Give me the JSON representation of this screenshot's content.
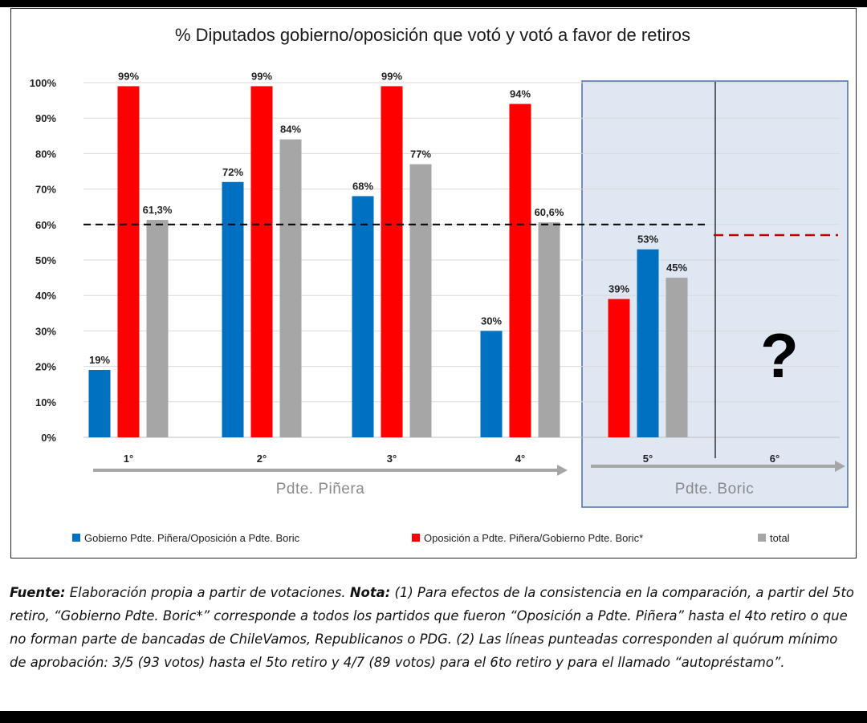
{
  "chart_data": {
    "type": "bar",
    "title": "% Diputados gobierno/oposición que votó y votó a favor de retiros",
    "categories": [
      "1°",
      "2°",
      "3°",
      "4°",
      "5°",
      "6°"
    ],
    "ylim": [
      0,
      100
    ],
    "y_ticks": [
      "0%",
      "10%",
      "20%",
      "30%",
      "40%",
      "50%",
      "60%",
      "70%",
      "80%",
      "90%",
      "100%"
    ],
    "grid": true,
    "legend_position": "bottom",
    "series": [
      {
        "name": "Gobierno Pdte. Piñera/Oposición a Pdte. Boric",
        "color": "#0070c0",
        "values": [
          19,
          72,
          68,
          30,
          53,
          null
        ],
        "labels": [
          "19%",
          "72%",
          "68%",
          "30%",
          "53%",
          ""
        ]
      },
      {
        "name": "Oposición a Pdte. Piñera/Gobierno Pdte. Boric*",
        "color": "#ff0000",
        "values": [
          99,
          99,
          99,
          94,
          39,
          null
        ],
        "labels": [
          "99%",
          "99%",
          "99%",
          "94%",
          "39%",
          ""
        ]
      },
      {
        "name": "total",
        "color": "#a6a6a6",
        "values": [
          61.3,
          84,
          77,
          60.6,
          45,
          null
        ],
        "labels": [
          "61,3%",
          "84%",
          "77%",
          "60,6%",
          "45%",
          ""
        ]
      }
    ],
    "reference_lines": [
      {
        "value": 60,
        "color": "#000000",
        "style": "dashed",
        "span": "1°-5°"
      },
      {
        "value": 57,
        "color": "#c00000",
        "style": "dashed",
        "span": "6°"
      }
    ],
    "group_labels": [
      "Pdte. Piñera",
      "Pdte. Boric"
    ],
    "unknown_marker": "?"
  },
  "caption": {
    "fuente_label": "Fuente:",
    "fuente_text": " Elaboración propia a partir de votaciones. ",
    "nota_label": "Nota:",
    "nota_text": " (1) Para efectos de la consistencia en la comparación, a partir del 5to retiro, “Gobierno Pdte. Boric*” corresponde a todos los partidos que fueron “Oposición a Pdte. Piñera” hasta el 4to retiro o que no forman parte de bancadas de ChileVamos, Republicanos o PDG. (2) Las líneas punteadas corresponden al quórum mínimo de aprobación: 3/5 (93 votos) hasta el 5to retiro y 4/7 (89 votos) para el 6to retiro y para el llamado “autopréstamo”."
  }
}
